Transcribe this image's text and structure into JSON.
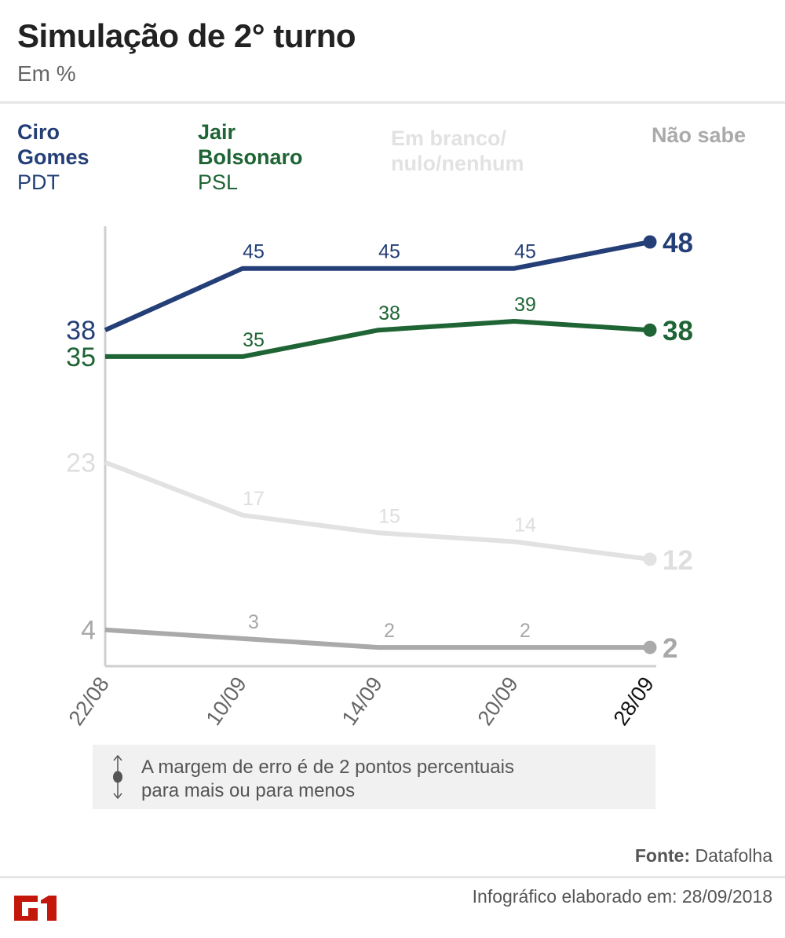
{
  "header": {
    "title": "Simulação de 2° turno",
    "subtitle": "Em %"
  },
  "legend": [
    {
      "name_line1": "Ciro",
      "name_line2": "Gomes",
      "party": "PDT",
      "color": "#243f77"
    },
    {
      "name_line1": "Jair",
      "name_line2": "Bolsonaro",
      "party": "PSL",
      "color": "#1e6434"
    },
    {
      "name_line1": "Em branco/",
      "name_line2": "nulo/nenhum",
      "party": "",
      "color": "#e2e2e2"
    },
    {
      "name_line1": "Não sabe",
      "name_line2": "",
      "party": "",
      "color": "#aaaaaa"
    }
  ],
  "chart_data": {
    "type": "line",
    "title": "Simulação de 2° turno",
    "subtitle": "Em %",
    "xlabel": "",
    "ylabel": "",
    "categories": [
      "22/08",
      "10/09",
      "14/09",
      "20/09",
      "28/09"
    ],
    "ylim": [
      0,
      48
    ],
    "grid": false,
    "legend_position": "top",
    "series": [
      {
        "name": "Ciro Gomes (PDT)",
        "color": "#243f77",
        "values": [
          38,
          45,
          45,
          45,
          48
        ]
      },
      {
        "name": "Jair Bolsonaro (PSL)",
        "color": "#1e6434",
        "values": [
          35,
          35,
          38,
          39,
          38
        ]
      },
      {
        "name": "Em branco/nulo/nenhum",
        "color": "#e2e2e2",
        "values": [
          23,
          17,
          15,
          14,
          12
        ]
      },
      {
        "name": "Não sabe",
        "color": "#aaaaaa",
        "values": [
          4,
          3,
          2,
          2,
          2
        ]
      }
    ]
  },
  "note": {
    "icon": "margin-of-error-icon",
    "line1": "A margem de erro é de 2 pontos percentuais",
    "line2": "para mais ou para menos"
  },
  "footer": {
    "source_label": "Fonte:",
    "source_value": "Datafolha",
    "credit": "Infográfico elaborado em: 28/09/2018",
    "logo_text": "G1",
    "logo_color": "#c4170c"
  }
}
